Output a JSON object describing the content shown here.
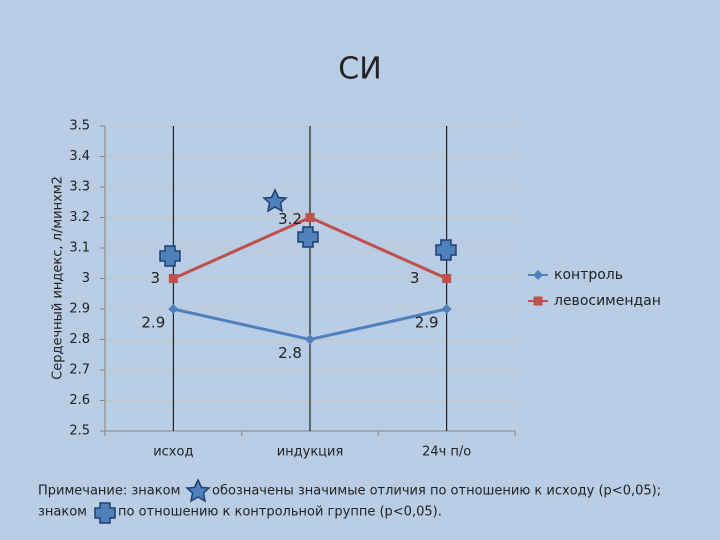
{
  "chart_data": {
    "type": "line",
    "title": "СИ",
    "y_label": "Сердечный индекс, л/минхм2",
    "categories": [
      "исход",
      "индукция",
      "24ч п/о"
    ],
    "series": [
      {
        "name": "контроль",
        "color": "#4f81bd",
        "marker": "diamond",
        "values": [
          2.9,
          2.8,
          2.9
        ]
      },
      {
        "name": "левосимендан",
        "color": "#c0504d",
        "marker": "square",
        "values": [
          3,
          3.2,
          3
        ]
      }
    ],
    "ylim": [
      2.5,
      3.5
    ],
    "yticks": [
      2.5,
      2.6,
      2.7,
      2.8,
      2.9,
      3,
      3.1,
      3.2,
      3.3,
      3.4,
      3.5
    ],
    "grid": true,
    "legend": "right"
  },
  "note": {
    "line1_start": "Примечание: знаком",
    "line1_end": "обозначены значимые отличия  по отношению к исходу (p<0,05);",
    "line2_start": "знаком",
    "line2_end": "по отношению к контрольной группе (p<0,05)."
  }
}
